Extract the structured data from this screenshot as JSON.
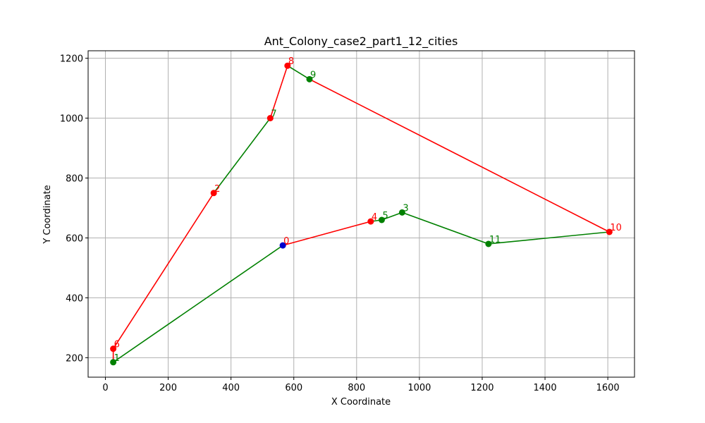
{
  "chart_data": {
    "type": "line",
    "title": "Ant_Colony_case2_part1_12_cities",
    "xlabel": "X Coordinate",
    "ylabel": "Y Coordinate",
    "xlim": [
      -55,
      1685
    ],
    "ylim": [
      135,
      1225
    ],
    "xticks": [
      0,
      200,
      400,
      600,
      800,
      1000,
      1200,
      1400,
      1600
    ],
    "yticks": [
      200,
      400,
      600,
      800,
      1000,
      1200
    ],
    "grid": true,
    "colors": {
      "red": "#ff0000",
      "green": "#008000",
      "blue": "#0000cd"
    },
    "cities": [
      {
        "id": "0",
        "x": 565,
        "y": 575
      },
      {
        "id": "1",
        "x": 25,
        "y": 185
      },
      {
        "id": "2",
        "x": 345,
        "y": 750
      },
      {
        "id": "3",
        "x": 945,
        "y": 685
      },
      {
        "id": "4",
        "x": 845,
        "y": 655
      },
      {
        "id": "5",
        "x": 880,
        "y": 660
      },
      {
        "id": "6",
        "x": 25,
        "y": 230
      },
      {
        "id": "7",
        "x": 525,
        "y": 1000
      },
      {
        "id": "8",
        "x": 580,
        "y": 1175
      },
      {
        "id": "9",
        "x": 650,
        "y": 1130
      },
      {
        "id": "10",
        "x": 1605,
        "y": 620
      },
      {
        "id": "11",
        "x": 1220,
        "y": 580
      }
    ],
    "segments": [
      {
        "from": "0",
        "to": "4",
        "color": "red"
      },
      {
        "from": "4",
        "to": "5",
        "color": "green"
      },
      {
        "from": "5",
        "to": "3",
        "color": "green"
      },
      {
        "from": "3",
        "to": "11",
        "color": "green"
      },
      {
        "from": "11",
        "to": "10",
        "color": "green"
      },
      {
        "from": "10",
        "to": "9",
        "color": "red"
      },
      {
        "from": "9",
        "to": "8",
        "color": "green"
      },
      {
        "from": "8",
        "to": "7",
        "color": "red"
      },
      {
        "from": "7",
        "to": "2",
        "color": "green"
      },
      {
        "from": "2",
        "to": "6",
        "color": "red"
      },
      {
        "from": "6",
        "to": "1",
        "color": "red"
      },
      {
        "from": "1",
        "to": "0",
        "color": "green"
      }
    ],
    "markers": [
      {
        "city": "0",
        "color": "blue",
        "label_color": "red"
      },
      {
        "city": "1",
        "color": "green",
        "label_color": "green"
      },
      {
        "city": "2",
        "color": "red",
        "label_color": "red"
      },
      {
        "city": "3",
        "color": "green",
        "label_color": "green"
      },
      {
        "city": "4",
        "color": "red",
        "label_color": "red"
      },
      {
        "city": "5",
        "color": "green",
        "label_color": "green"
      },
      {
        "city": "6",
        "color": "red",
        "label_color": "red"
      },
      {
        "city": "7",
        "color": "red",
        "label_color": "green"
      },
      {
        "city": "8",
        "color": "red",
        "label_color": "red"
      },
      {
        "city": "9",
        "color": "green",
        "label_color": "green"
      },
      {
        "city": "10",
        "color": "red",
        "label_color": "red"
      },
      {
        "city": "11",
        "color": "green",
        "label_color": "green"
      }
    ]
  }
}
